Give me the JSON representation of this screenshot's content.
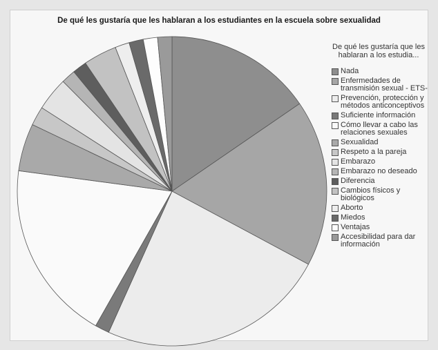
{
  "chart_data": {
    "type": "pie",
    "title": "De qué les gustaría que les hablaran a los estudiantes en la escuela sobre sexualidad",
    "legend_title": "De qué les gustaría que les hablaran a los estudia...",
    "legend_position": "right",
    "slices": [
      {
        "label": "Nada",
        "value": 15.5,
        "color": "#8e8e8e"
      },
      {
        "label": "Enfermedades de transmisión sexual - ETS-",
        "value": 17.5,
        "color": "#a6a6a6"
      },
      {
        "label": "Prevención, protección y métodos anticonceptivos",
        "value": 24.0,
        "color": "#ececec"
      },
      {
        "label": "Suficiente información",
        "value": 1.5,
        "color": "#7a7a7a"
      },
      {
        "label": "Cómo llevar a cabo las relaciones sexuales",
        "value": 19.0,
        "color": "#fafafa"
      },
      {
        "label": "Sexualidad",
        "value": 5.0,
        "color": "#a9a9a9"
      },
      {
        "label": "Respeto a la pareja",
        "value": 2.0,
        "color": "#c7c7c7"
      },
      {
        "label": "Embarazo",
        "value": 3.5,
        "color": "#e4e4e4"
      },
      {
        "label": "Embarazo no deseado",
        "value": 1.5,
        "color": "#b5b5b5"
      },
      {
        "label": "Diferencia",
        "value": 1.5,
        "color": "#5e5e5e"
      },
      {
        "label": "Cambios físicos y biológicos",
        "value": 3.5,
        "color": "#c2c2c2"
      },
      {
        "label": "Aborto",
        "value": 1.5,
        "color": "#eeeeee"
      },
      {
        "label": "Miedos",
        "value": 1.5,
        "color": "#6a6a6a"
      },
      {
        "label": "Ventajas",
        "value": 1.5,
        "color": "#fdfdfd"
      },
      {
        "label": "Accesibilidad para dar información",
        "value": 1.5,
        "color": "#9a9a9a"
      }
    ]
  }
}
